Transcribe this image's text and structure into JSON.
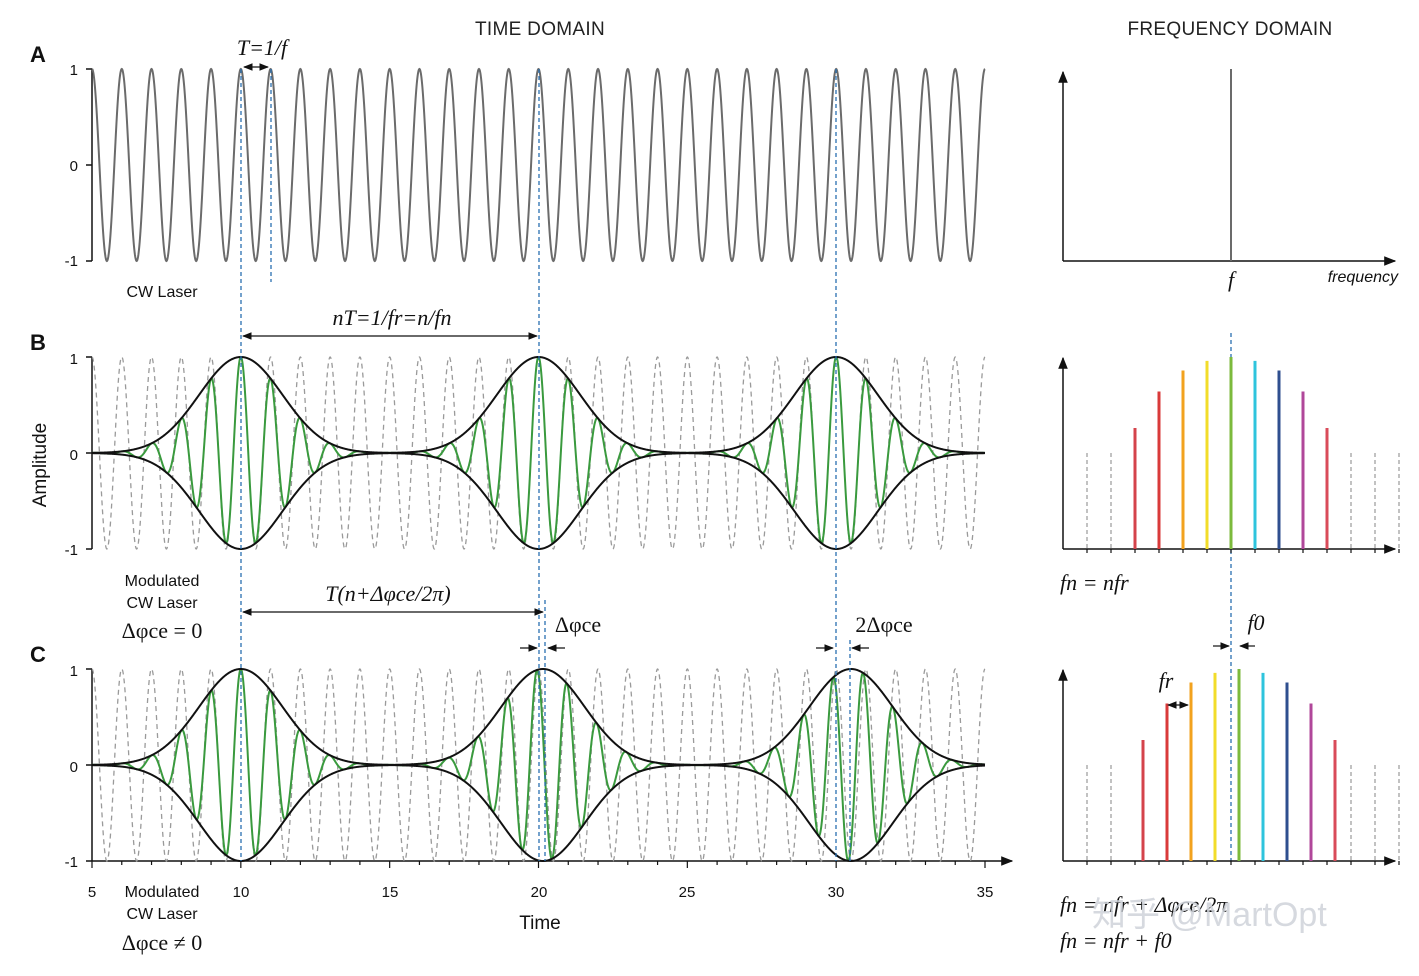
{
  "headings": {
    "time": "TIME DOMAIN",
    "frequency": "FREQUENCY DOMAIN"
  },
  "panels": {
    "a": {
      "letter": "A",
      "caption": "CW Laser",
      "period": "T=1/f"
    },
    "b": {
      "letter": "B",
      "caption1": "Modulated",
      "caption2": "CW Laser",
      "phase": "Δφce = 0",
      "spacing": "nT=1/fr=n/fn",
      "freq_formula": "fn = nfr"
    },
    "c": {
      "letter": "C",
      "caption1": "Modulated",
      "caption2": "CW Laser",
      "phase": "Δφce ≠ 0",
      "spacing": "T(n+Δφce/2π)",
      "shift1": "Δφce",
      "shift2": "2Δφce",
      "fr": "fr",
      "f0": "f0",
      "freq_formula1": "fn = nfr + Δφce/2π",
      "freq_formula2": "fn = nfr + f0"
    }
  },
  "axes": {
    "amplitude_label": "Amplitude",
    "time_label": "Time",
    "frequency_label": "frequency",
    "freq_marker": "f",
    "y_ticks": [
      "1",
      "0",
      "-1"
    ],
    "x_ticks": [
      "5",
      "10",
      "15",
      "20",
      "25",
      "30",
      "35"
    ]
  },
  "chart_data": {
    "type": "line",
    "x_range": [
      5,
      35
    ],
    "y_range": [
      -1,
      1
    ],
    "carrier_period": 1,
    "pulse_centers": [
      10,
      20,
      30
    ],
    "pulse_centers_shifted": [
      10,
      20.15,
      30.5
    ],
    "comb_colors": [
      "#d4434b",
      "#d93a3a",
      "#f2a21e",
      "#f2dc2a",
      "#7cba3c",
      "#2ec4dd",
      "#2f4f8f",
      "#b0479a",
      "#d94b5a"
    ],
    "comb_heights_b": [
      0.63,
      0.82,
      0.93,
      0.98,
      1.0,
      0.98,
      0.93,
      0.82,
      0.63
    ],
    "comb_heights_c": [
      0.63,
      0.82,
      0.93,
      0.98,
      1.0,
      0.98,
      0.93,
      0.82,
      0.63
    ]
  },
  "watermark": "知乎 @MartOpt",
  "colors": {
    "carrier": "#6b6b6b",
    "pulse": "#3a9a3e",
    "envelope": "#111111",
    "guide": "#2a6fb0",
    "dashed": "#9a9a9a"
  }
}
